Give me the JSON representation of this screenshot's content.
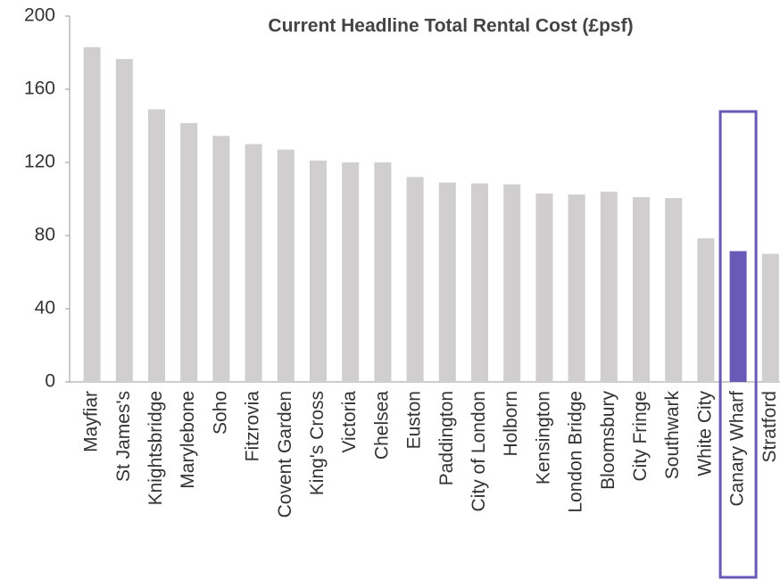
{
  "chart_data": {
    "type": "bar",
    "title": "Current Headline Total Rental Cost (£psf)",
    "categories": [
      "Mayfiar",
      "St James's",
      "Knightsbridge",
      "Marylebone",
      "Soho",
      "Fitzrovia",
      "Covent Garden",
      "King's Cross",
      "Victoria",
      "Chelsea",
      "Euston",
      "Paddington",
      "City of London",
      "Holborn",
      "Kensington",
      "London Bridge",
      "Bloomsbury",
      "City Fringe",
      "Southwark",
      "White City",
      "Canary Wharf",
      "Stratford"
    ],
    "values": [
      183,
      176.5,
      149,
      141.5,
      134.5,
      130,
      127,
      121,
      120,
      120,
      112,
      109,
      108.5,
      108,
      103,
      102.5,
      104,
      101,
      100.5,
      78.5,
      71.5,
      70
    ],
    "colors": [
      "#d0cece",
      "#d0cece",
      "#d0cece",
      "#d0cece",
      "#d0cece",
      "#d0cece",
      "#d0cece",
      "#d0cece",
      "#d0cece",
      "#d0cece",
      "#d0cece",
      "#d0cece",
      "#d0cece",
      "#d0cece",
      "#d0cece",
      "#d0cece",
      "#d0cece",
      "#d0cece",
      "#d0cece",
      "#d0cece",
      "#6a5ab8",
      "#d0cece"
    ],
    "ylim": [
      0,
      200
    ],
    "yticks": [
      0,
      40,
      80,
      120,
      160,
      200
    ],
    "grid": false
  }
}
